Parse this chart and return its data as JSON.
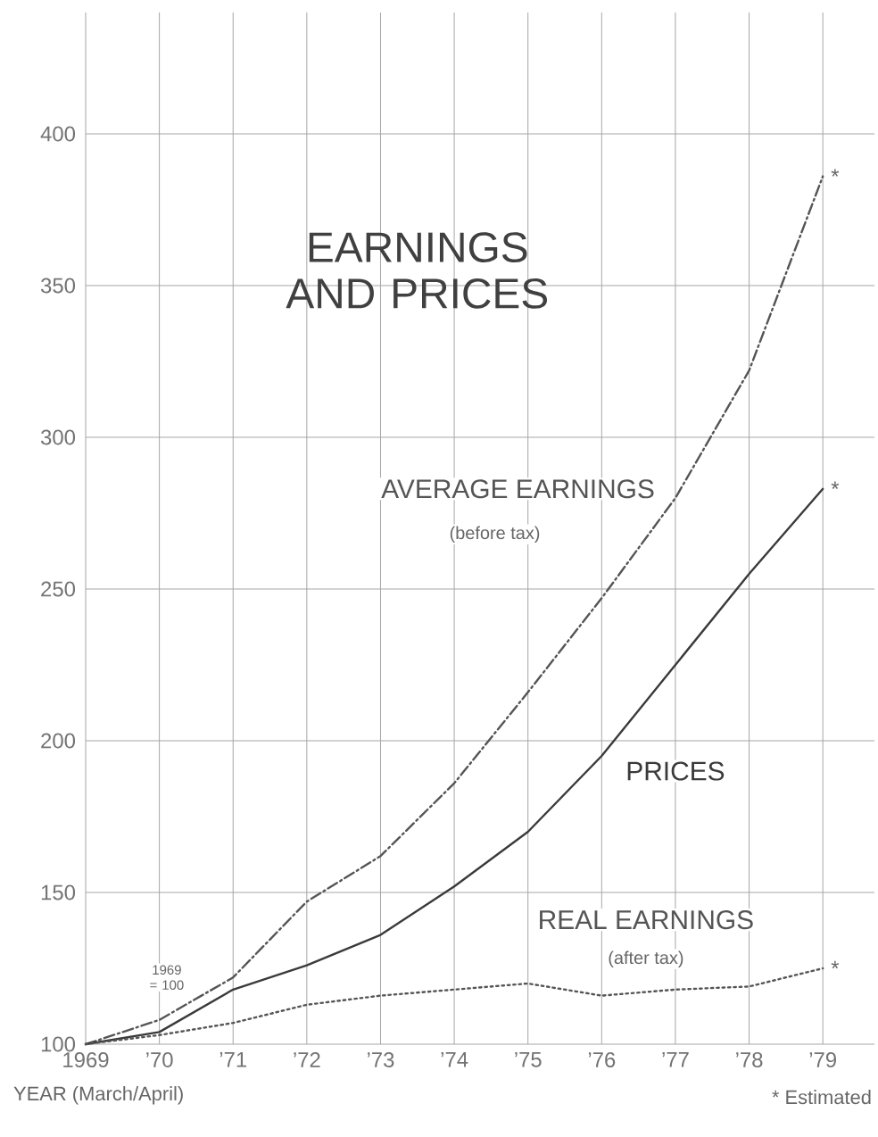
{
  "chart_data": {
    "type": "line",
    "title": "EARNINGS AND PRICES",
    "x": [
      1969,
      1970,
      1971,
      1972,
      1973,
      1974,
      1975,
      1976,
      1977,
      1978,
      1979
    ],
    "series": [
      {
        "name": "AVERAGE EARNINGS",
        "color": "#555555",
        "line_style": "dashed",
        "values": [
          100,
          108,
          122,
          147,
          162,
          186,
          216,
          247,
          280,
          322,
          386
        ]
      },
      {
        "name": "PRICES",
        "color": "#3a3a3a",
        "line_style": "solid",
        "values": [
          100,
          104,
          118,
          126,
          136,
          152,
          170,
          195,
          225,
          255,
          283
        ]
      },
      {
        "name": "REAL EARNINGS",
        "color": "#555555",
        "line_style": "dotted",
        "values": [
          100,
          103,
          107,
          113,
          116,
          118,
          120,
          116,
          118,
          119,
          125
        ]
      }
    ],
    "xlabel": "YEAR (March/April)",
    "xlim": [
      1969,
      1979.7
    ],
    "xticks": [
      1969,
      {
        "value": 1970,
        "label": "’70"
      },
      {
        "value": 1971,
        "label": "’71"
      },
      {
        "value": 1972,
        "label": "’72"
      },
      {
        "value": 1973,
        "label": "’73"
      },
      {
        "value": 1974,
        "label": "’74"
      },
      {
        "value": 1975,
        "label": "’75"
      },
      {
        "value": 1976,
        "label": "’76"
      },
      {
        "value": 1977,
        "label": "’77"
      },
      {
        "value": 1978,
        "label": "’78"
      },
      {
        "value": 1979,
        "label": "’79"
      }
    ],
    "ylim": [
      100,
      440
    ],
    "yticks": [
      100,
      150,
      200,
      250,
      300,
      350,
      400
    ],
    "grid": true,
    "legend": false,
    "marker": "none",
    "annotations": [
      "(before tax)",
      "(after tax)",
      "1969 = 100",
      "* Estimated",
      "*",
      "*",
      "*"
    ]
  }
}
